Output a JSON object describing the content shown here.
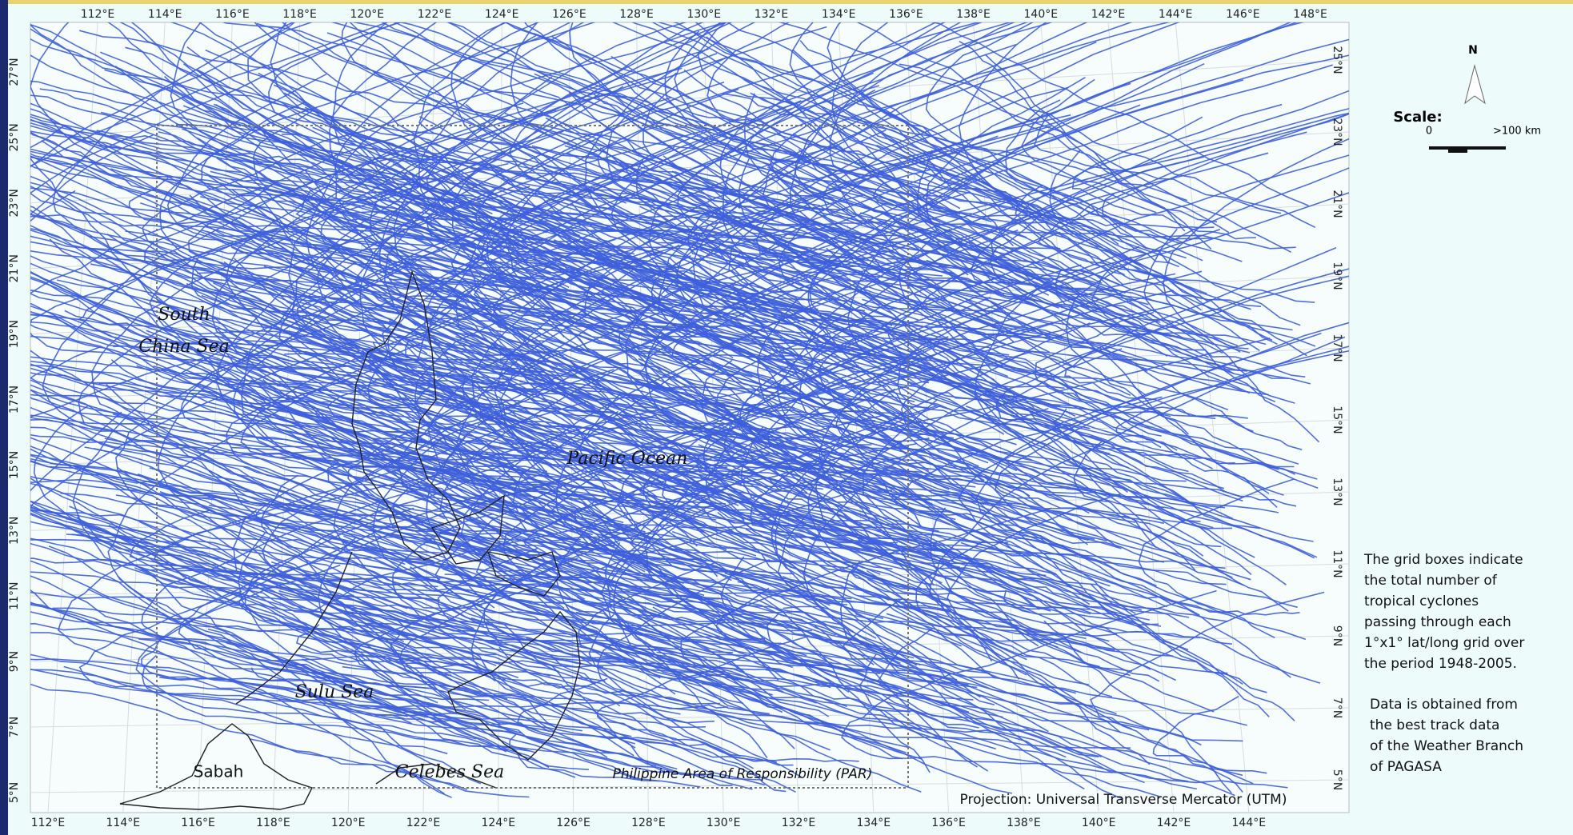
{
  "map": {
    "top_labels": [
      "112°E",
      "114°E",
      "116°E",
      "118°E",
      "120°E",
      "122°E",
      "124°E",
      "126°E",
      "128°E",
      "130°E",
      "132°E",
      "134°E",
      "136°E",
      "138°E",
      "140°E",
      "142°E",
      "144°E",
      "146°E",
      "148°E"
    ],
    "bottom_labels": [
      "112°E",
      "114°E",
      "116°E",
      "118°E",
      "120°E",
      "122°E",
      "124°E",
      "126°E",
      "128°E",
      "130°E",
      "132°E",
      "134°E",
      "136°E",
      "138°E",
      "140°E",
      "142°E",
      "144°E"
    ],
    "left_labels": [
      "27°N",
      "25°N",
      "23°N",
      "21°N",
      "19°N",
      "17°N",
      "15°N",
      "13°N",
      "11°N",
      "9°N",
      "7°N",
      "5°N"
    ],
    "right_labels": [
      "25°N",
      "23°N",
      "21°N",
      "19°N",
      "17°N",
      "15°N",
      "13°N",
      "11°N",
      "9°N",
      "7°N",
      "5°N"
    ],
    "places": {
      "south": "South",
      "china_sea": "China Sea",
      "pacific": "Pacific Ocean",
      "sulu": "Sulu Sea",
      "sabah": "Sabah",
      "celebes": "Celebes Sea"
    },
    "par_label": "Philippine Area of Responsibility (PAR)",
    "projection": "Projection: Universal Transverse Mercator (UTM)"
  },
  "legend": {
    "north": "N",
    "scale_title": "Scale:",
    "scale_start": "0",
    "scale_end": ">100 km"
  },
  "notes": {
    "paragraph_1": [
      "The grid boxes indicate",
      "the total  number of",
      "tropical cyclones",
      "passing through each",
      "1°x1° lat/long grid over",
      "the period 1948-2005."
    ],
    "paragraph_2": [
      "Data is obtained from",
      "the  best track  data",
      "of the Weather Branch",
      "of PAGASA"
    ]
  }
}
